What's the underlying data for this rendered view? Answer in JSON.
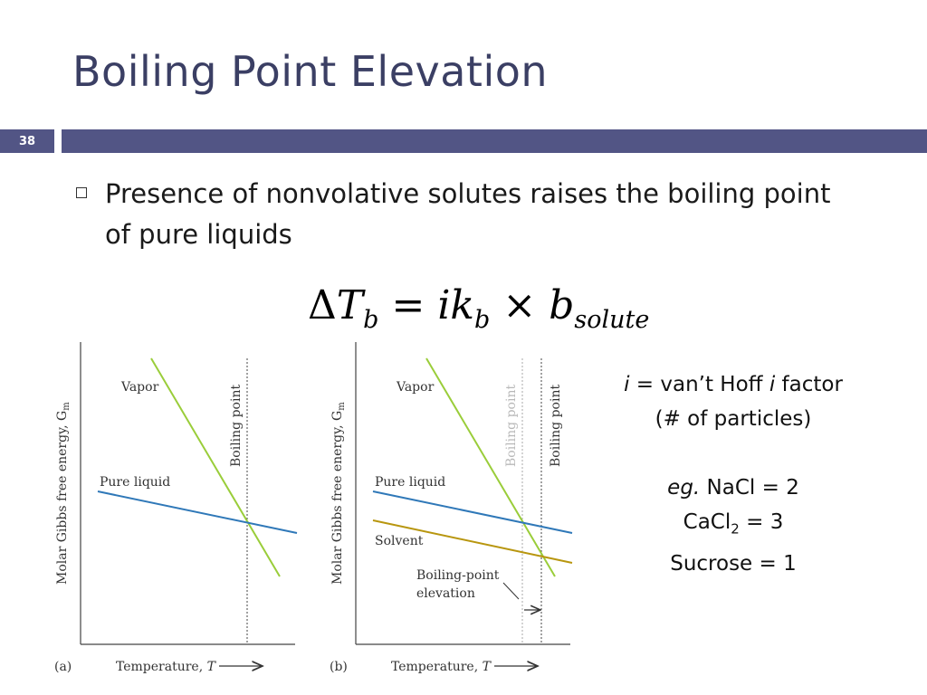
{
  "slide": {
    "title": "Boiling Point Elevation",
    "number": "38"
  },
  "bullet": {
    "text": "Presence of nonvolative solutes raises the boiling point of pure liquids"
  },
  "equation": {
    "delta": "Δ",
    "T": "T",
    "b_sub": "b",
    "equals": "=",
    "ik": "ik",
    "k_sub": "b",
    "times": "×",
    "b": "b",
    "solute_sub": "solute"
  },
  "note": {
    "i_symbol": "i",
    "line1_rest": " = van’t Hoff ",
    "i_symbol2": "i",
    "line1_end": " factor",
    "line2": "(# of particles)",
    "eg": "eg.",
    "nacl": " NaCl = 2",
    "cacl_pre": "CaCl",
    "cacl_sub": "2",
    "cacl_post": " = 3",
    "sucrose": "Sucrose = 1"
  },
  "diagram_a": {
    "panel_label": "(a)",
    "y_axis": "Molar Gibbs free energy, G",
    "y_axis_sub": "m",
    "x_axis": "Temperature, ",
    "x_axis_var": "T",
    "vapor": "Vapor",
    "pure_liquid": "Pure liquid",
    "boiling_point": "Boiling point"
  },
  "diagram_b": {
    "panel_label": "(b)",
    "y_axis": "Molar Gibbs free energy, G",
    "y_axis_sub": "m",
    "x_axis": "Temperature, ",
    "x_axis_var": "T",
    "vapor": "Vapor",
    "pure_liquid": "Pure liquid",
    "solvent": "Solvent",
    "boiling_point_faded": "Boiling point",
    "boiling_point": "Boiling point",
    "elevation_line1": "Boiling-point",
    "elevation_line2": "elevation"
  },
  "colors": {
    "title": "#3b3f64",
    "bar": "#525585",
    "vapor_line": "#9acd3a",
    "pure_liquid_line": "#2f78b8",
    "solvent_line": "#b8960f",
    "faded": "#b8b8b8"
  }
}
